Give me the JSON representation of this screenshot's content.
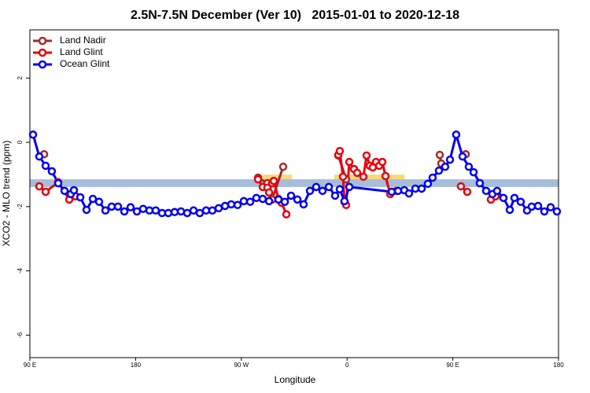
{
  "chart_data": {
    "type": "line",
    "title": "2.5N-7.5N December (Ver 10)   2015-01-01 to 2020-12-18",
    "x_label": "Longitude",
    "y_label": "XCO2 - MLO trend (ppm)",
    "xlim": [
      90,
      540
    ],
    "ylim": [
      -6.7,
      3.5
    ],
    "xticks": [
      {
        "value": 90,
        "label": "90 E"
      },
      {
        "value": 180,
        "label": "180"
      },
      {
        "value": 270,
        "label": "90 W"
      },
      {
        "value": 360,
        "label": "0"
      },
      {
        "value": 450,
        "label": "90 E"
      },
      {
        "value": 540,
        "label": "180"
      }
    ],
    "yticks": [
      -6,
      -4,
      -2,
      0,
      2
    ],
    "legend_position": "top-left",
    "band": {
      "range": [
        -1.39,
        -1.15
      ],
      "color": "#a6bddb"
    },
    "shaded_regions": {
      "ranges": [
        [
          285,
          313
        ],
        [
          349,
          409
        ]
      ],
      "color": "#fbd97a"
    },
    "series": [
      {
        "name": "Land Nadir",
        "color": "#a52a2a",
        "x": [
          102.1,
          null,
          284.2,
          292.2,
          296.2,
          305.6,
          null,
          352.5,
          359.2,
          null,
          438.9,
          440.2,
          null,
          461.0
        ],
        "values": [
          -0.37,
          null,
          -1.1,
          -1.27,
          -1.78,
          -0.76,
          null,
          -0.41,
          -1.15,
          null,
          -0.39,
          -0.66,
          null,
          -0.37
        ]
      },
      {
        "name": "Land Glint",
        "color": "#e8000b",
        "x": [
          98.0,
          103.4,
          114.1,
          123.5,
          128.8,
          null,
          284.2,
          288.2,
          292.2,
          293.6,
          296.2,
          297.6,
          301.6,
          304.3,
          308.3,
          null,
          352.5,
          353.8,
          356.5,
          357.8,
          359.2,
          361.9,
          365.9,
          368.6,
          373.9,
          376.6,
          379.3,
          381.9,
          384.6,
          387.3,
          390.0,
          392.7,
          396.7,
          402.0,
          null,
          456.9,
          462.3,
          null,
          482.4,
          486.4
        ],
        "values": [
          -1.37,
          -1.54,
          -1.24,
          -1.78,
          -1.68,
          null,
          -1.15,
          -1.39,
          -1.41,
          -1.56,
          -1.27,
          -1.2,
          -1.76,
          -1.88,
          -2.24,
          null,
          -0.39,
          -0.27,
          -1.07,
          -1.85,
          -1.95,
          -0.61,
          -0.83,
          -0.95,
          -1.07,
          -0.41,
          -0.73,
          -0.78,
          -0.61,
          -0.73,
          -0.61,
          -1.05,
          -1.61,
          -1.51,
          null,
          -1.37,
          -1.54,
          null,
          -1.78,
          -1.68
        ]
      },
      {
        "name": "Ocean Glint",
        "color": "#0000ee",
        "x": [
          92.7,
          98.0,
          103.4,
          108.7,
          114.1,
          119.5,
          124.8,
          127.5,
          132.9,
          138.2,
          143.6,
          148.9,
          154.3,
          159.6,
          165.0,
          170.4,
          175.7,
          181.1,
          186.4,
          191.8,
          197.1,
          202.5,
          207.8,
          213.2,
          218.6,
          223.9,
          229.3,
          234.6,
          240.0,
          245.3,
          250.7,
          256.1,
          261.4,
          266.8,
          272.1,
          277.5,
          282.8,
          288.2,
          293.6,
          301.6,
          307.0,
          312.3,
          317.7,
          323.0,
          328.4,
          333.7,
          339.1,
          344.5,
          349.8,
          353.8,
          357.8,
          361.9,
          398.0,
          403.4,
          408.7,
          412.7,
          418.1,
          423.5,
          428.8,
          432.8,
          438.2,
          443.5,
          447.6,
          452.9,
          458.3,
          463.6,
          467.7,
          473.0,
          478.4,
          483.7,
          487.7,
          493.1,
          498.5,
          502.5,
          507.8,
          513.2,
          517.2,
          522.6,
          527.9,
          533.3,
          538.6
        ],
        "values": [
          0.24,
          -0.44,
          -0.73,
          -0.9,
          -1.27,
          -1.51,
          -1.61,
          -1.49,
          -1.71,
          -2.1,
          -1.76,
          -1.85,
          -2.12,
          -2.0,
          -2.0,
          -2.15,
          -2.02,
          -2.15,
          -2.07,
          -2.12,
          -2.12,
          -2.2,
          -2.2,
          -2.17,
          -2.15,
          -2.2,
          -2.12,
          -2.2,
          -2.12,
          -2.12,
          -2.05,
          -1.98,
          -1.93,
          -1.95,
          -1.83,
          -1.85,
          -1.73,
          -1.76,
          -1.83,
          -1.78,
          -1.85,
          -1.66,
          -1.78,
          -1.93,
          -1.51,
          -1.39,
          -1.51,
          -1.39,
          -1.66,
          -1.46,
          -1.83,
          -1.39,
          -1.54,
          -1.51,
          -1.49,
          -1.59,
          -1.44,
          -1.44,
          -1.29,
          -1.1,
          -0.88,
          -0.76,
          -0.54,
          0.24,
          -0.44,
          -0.76,
          -0.93,
          -1.27,
          -1.51,
          -1.61,
          -1.51,
          -1.73,
          -2.1,
          -1.73,
          -1.85,
          -2.12,
          -2.0,
          -1.98,
          -2.15,
          -2.02,
          -2.15
        ]
      }
    ]
  }
}
